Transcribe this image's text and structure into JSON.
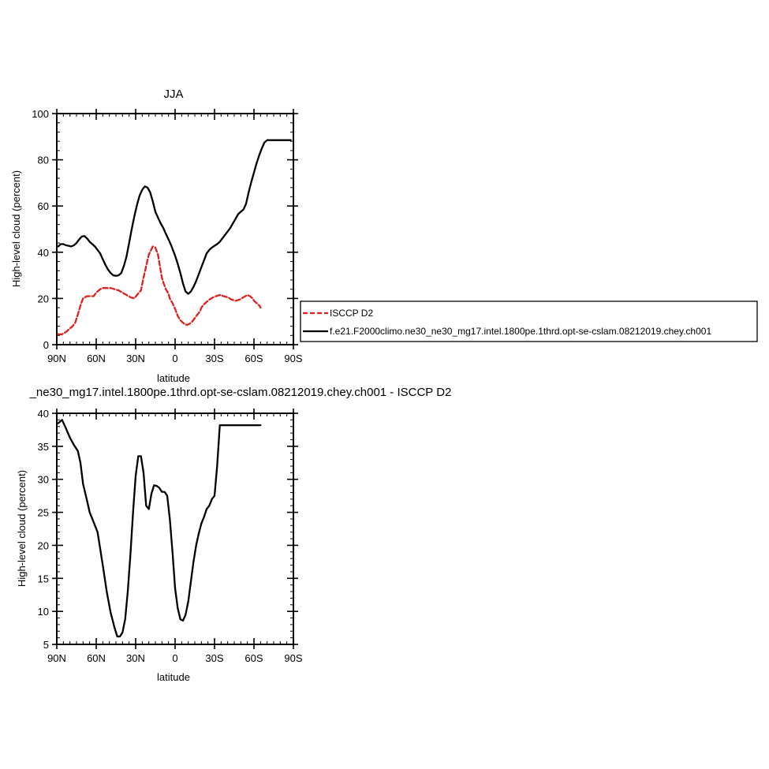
{
  "chart_data": [
    {
      "type": "line",
      "title": "JJA",
      "xlabel": "latitude",
      "ylabel": "High-level cloud (percent)",
      "x_axis_direction": "north-to-south",
      "x_range_degrees_north": [
        90,
        -90
      ],
      "x_ticks": [
        {
          "value": 90,
          "label": "90N"
        },
        {
          "value": 60,
          "label": "60N"
        },
        {
          "value": 30,
          "label": "30N"
        },
        {
          "value": 0,
          "label": "0"
        },
        {
          "value": -30,
          "label": "30S"
        },
        {
          "value": -60,
          "label": "60S"
        },
        {
          "value": -90,
          "label": "90S"
        }
      ],
      "ylim": [
        0,
        100
      ],
      "y_ticks": [
        0,
        20,
        40,
        60,
        80,
        100
      ],
      "grid": false,
      "legend_placement": "right, outside plot",
      "series": [
        {
          "name": "ISCCP D2",
          "color": "#e0201b",
          "style": "dashed",
          "x": [
            89,
            86,
            83,
            80,
            78,
            76,
            74,
            72,
            70,
            67,
            65,
            62,
            60,
            57,
            55,
            52,
            49,
            46,
            43,
            40,
            37,
            34,
            31,
            29,
            26,
            24,
            22,
            20,
            17,
            15,
            13,
            11,
            10,
            9,
            7,
            5,
            4,
            2,
            0,
            -2,
            -4,
            -7,
            -9,
            -11,
            -13,
            -15,
            -17,
            -19,
            -20,
            -22,
            -24,
            -26,
            -29,
            -31,
            -34,
            -37,
            -40,
            -43,
            -46,
            -49,
            -52,
            -55,
            -57,
            -59,
            -60,
            -62,
            -64,
            -65
          ],
          "y": [
            4.5,
            4.5,
            5.5,
            7,
            8,
            9.5,
            13,
            17,
            20,
            21,
            21,
            21,
            22.5,
            24,
            24.5,
            24.5,
            24.5,
            24,
            23.5,
            22.5,
            21.5,
            20.5,
            20,
            21.5,
            23.5,
            29,
            34,
            39,
            42.5,
            42,
            39,
            32,
            29,
            27,
            24,
            22,
            20,
            18,
            15.5,
            12.5,
            10.5,
            9,
            8.5,
            9,
            10,
            11.5,
            13,
            14.5,
            16,
            17.5,
            18.5,
            19.5,
            20.5,
            21,
            21.5,
            21,
            20.5,
            19.5,
            19,
            19.5,
            20.5,
            21.5,
            21,
            20,
            19,
            18,
            17,
            16
          ]
        },
        {
          "name": "f.e21.F2000climo.ne30_ne30_mg17.intel.1800pe.1thrd.opt-se-cslam.08212019.chey.ch001",
          "color": "#000000",
          "style": "solid",
          "x": [
            89,
            87,
            85,
            83,
            81,
            79,
            77,
            75,
            73,
            71,
            69,
            67,
            65,
            63,
            61,
            59,
            57,
            55,
            53,
            51,
            49,
            47,
            45,
            43,
            41,
            39,
            37,
            35,
            33,
            31,
            29,
            27,
            25,
            23,
            21,
            19,
            17,
            15,
            13,
            11,
            9,
            7,
            5,
            3,
            1,
            0,
            -2,
            -4,
            -6,
            -8,
            -10,
            -12,
            -14,
            -16,
            -18,
            -20,
            -22,
            -24,
            -26,
            -28,
            -30,
            -32,
            -34,
            -36,
            -38,
            -40,
            -42,
            -44,
            -46,
            -48,
            -50,
            -52,
            -54,
            -56,
            -58,
            -60,
            -62,
            -64,
            -66,
            -68,
            -70,
            -72,
            -74,
            -76,
            -78,
            -80,
            -82,
            -84,
            -86,
            -88
          ],
          "y": [
            42.5,
            43.5,
            43.5,
            43,
            42.8,
            42.5,
            43,
            44,
            45.5,
            46.8,
            47,
            46,
            44.5,
            43.5,
            42.5,
            41,
            39.5,
            37,
            34.5,
            32.5,
            31,
            30,
            29.8,
            30,
            31,
            34,
            38,
            44,
            50,
            55.5,
            60.5,
            64.5,
            67,
            68.5,
            68,
            66,
            62,
            57.5,
            55,
            52.5,
            50.5,
            48,
            45.5,
            43,
            40,
            38.5,
            35,
            31,
            26.5,
            23,
            22,
            23,
            25,
            27.5,
            30.5,
            33.5,
            36.5,
            39.5,
            41,
            42,
            42.8,
            43.5,
            44.5,
            46,
            47.5,
            49,
            50.5,
            52.5,
            54.5,
            56.5,
            57.5,
            58.5,
            61,
            66,
            70.5,
            74.5,
            78.5,
            82,
            85,
            87.5,
            88.5,
            88.5,
            88.5,
            88.5,
            88.5,
            88.5,
            88.5,
            88.5,
            88.5,
            88.5
          ]
        }
      ]
    },
    {
      "type": "line",
      "title": "_ne30_mg17.intel.1800pe.1thrd.opt-se-cslam.08212019.chey.ch001 - ISCCP D2",
      "xlabel": "latitude",
      "ylabel": "High-level cloud (percent)",
      "x_axis_direction": "north-to-south",
      "x_range_degrees_north": [
        90,
        -90
      ],
      "x_ticks": [
        {
          "value": 90,
          "label": "90N"
        },
        {
          "value": 60,
          "label": "60N"
        },
        {
          "value": 30,
          "label": "30N"
        },
        {
          "value": 0,
          "label": "0"
        },
        {
          "value": -30,
          "label": "30S"
        },
        {
          "value": -60,
          "label": "60S"
        },
        {
          "value": -90,
          "label": "90S"
        }
      ],
      "ylim": [
        5,
        40
      ],
      "y_ticks": [
        5,
        10,
        15,
        20,
        25,
        30,
        35,
        40
      ],
      "grid": false,
      "series": [
        {
          "color": "#000000",
          "style": "solid",
          "x": [
            89,
            86,
            83,
            80,
            77,
            74,
            72,
            70,
            67,
            65,
            62,
            59,
            57,
            55,
            52,
            49,
            46,
            44,
            42,
            40,
            38,
            36,
            34,
            32,
            30,
            28,
            26,
            24,
            22,
            20,
            18,
            16,
            14,
            12,
            10,
            8,
            6,
            4,
            2,
            0,
            -2,
            -4,
            -6,
            -8,
            -10,
            -12,
            -14,
            -16,
            -18,
            -20,
            -22,
            -24,
            -26,
            -28,
            -30,
            -32,
            -34,
            -36,
            -38,
            -40,
            -42,
            -44,
            -46,
            -48,
            -50,
            -52,
            -54,
            -56,
            -58,
            -60,
            -62,
            -64,
            -65
          ],
          "y": [
            38.5,
            39,
            37.7,
            36.3,
            35.2,
            34.3,
            32.5,
            29.3,
            26.8,
            25,
            23.5,
            22,
            19.5,
            17,
            13,
            9.8,
            7.5,
            6.2,
            6.2,
            6.8,
            8.8,
            13,
            18.5,
            25,
            30.5,
            33.5,
            33.5,
            31,
            26,
            25.5,
            27.8,
            29.1,
            29,
            28.7,
            28.1,
            28.1,
            27.5,
            24,
            19,
            13.5,
            10.5,
            8.8,
            8.6,
            9.5,
            11.5,
            14.5,
            17.5,
            20,
            21.8,
            23.3,
            24.3,
            25.5,
            26,
            27,
            27.5,
            32,
            38.2,
            38.2,
            38.2,
            38.2,
            38.2,
            38.2,
            38.2,
            38.2,
            38.2,
            38.2,
            38.2,
            38.2,
            38.2,
            38.2,
            38.2,
            38.2,
            38.2
          ]
        }
      ]
    }
  ]
}
